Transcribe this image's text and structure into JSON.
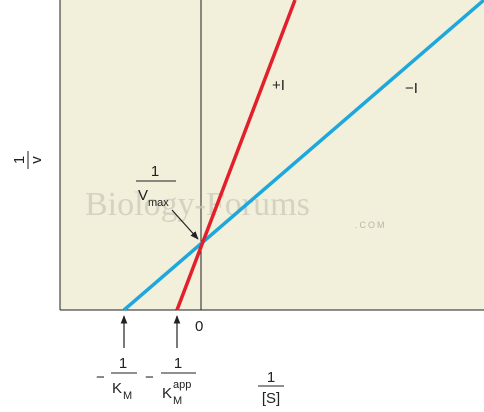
{
  "y_axis_label": {
    "numerator": "1",
    "denominator": "v"
  },
  "intercept_label": {
    "numerator": "1",
    "denominator": "V",
    "subscript": "max"
  },
  "line_labels": {
    "inhibited": "+I",
    "uninhibited": "−I"
  },
  "origin_label": "0",
  "km_label": {
    "sign": "−",
    "numerator": "1",
    "denominator": "K",
    "subscript": "M"
  },
  "km_app_label": {
    "sign": "−",
    "numerator": "1",
    "denominator": "K",
    "subscript": "M",
    "superscript": "app"
  },
  "x_axis_label": {
    "numerator": "1",
    "denominator": "[S]"
  },
  "watermark": {
    "text": "Biology-Forums",
    "suffix": ".COM"
  }
}
